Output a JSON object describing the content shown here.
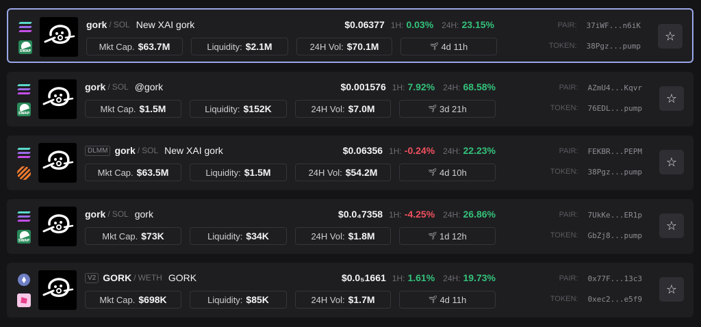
{
  "labels": {
    "mcap": "Mkt Cap.",
    "liquidity": "Liquidity:",
    "vol": "24H Vol:",
    "h1": "1H:",
    "h24": "24H:",
    "pair": "PAIR:",
    "token": "TOKEN:",
    "swap": "SWAP",
    "star": "☆"
  },
  "colors": {
    "positive": "#34c27a",
    "negative": "#f0505e",
    "selected_border": "#9aa7e8"
  },
  "pairs": [
    {
      "badge": "",
      "base": "gork",
      "quote": "SOL",
      "name": "New XAI gork",
      "price": "$0.06377",
      "h1": "0.03%",
      "h1_dir": "pos",
      "h24": "23.15%",
      "h24_dir": "pos",
      "mcap": "$63.7M",
      "liquidity": "$2.1M",
      "vol": "$70.1M",
      "age": "4d 11h",
      "pair_addr": "37iWF...n6iK",
      "token_addr": "38Pgz...pump",
      "chain_top": "solana-icon",
      "chain_bottom": "raydium-swap-icon",
      "selected": true
    },
    {
      "badge": "",
      "base": "gork",
      "quote": "SOL",
      "name": "@gork",
      "price": "$0.001576",
      "h1": "7.92%",
      "h1_dir": "pos",
      "h24": "68.58%",
      "h24_dir": "pos",
      "mcap": "$1.5M",
      "liquidity": "$152K",
      "vol": "$7.0M",
      "age": "3d 21h",
      "pair_addr": "AZmU4...Kqvr",
      "token_addr": "76EDL...pump",
      "chain_top": "solana-icon",
      "chain_bottom": "raydium-swap-icon",
      "selected": false
    },
    {
      "badge": "DLMM",
      "base": "gork",
      "quote": "SOL",
      "name": "New XAI gork",
      "price": "$0.06356",
      "h1": "-0.24%",
      "h1_dir": "neg",
      "h24": "22.23%",
      "h24_dir": "pos",
      "mcap": "$63.5M",
      "liquidity": "$1.5M",
      "vol": "$54.2M",
      "age": "4d 10h",
      "pair_addr": "FEKBR...PEPM",
      "token_addr": "38Pgz...pump",
      "chain_top": "solana-icon",
      "chain_bottom": "meteora-icon",
      "selected": false
    },
    {
      "badge": "",
      "base": "gork",
      "quote": "SOL",
      "name": "gork",
      "price": "$0.0₄7358",
      "h1": "-4.25%",
      "h1_dir": "neg",
      "h24": "26.86%",
      "h24_dir": "pos",
      "mcap": "$73K",
      "liquidity": "$34K",
      "vol": "$1.8M",
      "age": "1d 12h",
      "pair_addr": "7UkKe...ER1p",
      "token_addr": "GbZj8...pump",
      "chain_top": "solana-icon",
      "chain_bottom": "raydium-swap-icon",
      "selected": false
    },
    {
      "badge": "V2",
      "base": "GORK",
      "quote": "WETH",
      "name": "GORK",
      "price": "$0.0₅1661",
      "h1": "1.61%",
      "h1_dir": "pos",
      "h24": "19.73%",
      "h24_dir": "pos",
      "mcap": "$698K",
      "liquidity": "$85K",
      "vol": "$1.7M",
      "age": "4d 11h",
      "pair_addr": "0x77F...13c3",
      "token_addr": "0xec2...e5f9",
      "chain_top": "ethereum-icon",
      "chain_bottom": "uniswap-icon",
      "selected": false
    }
  ]
}
